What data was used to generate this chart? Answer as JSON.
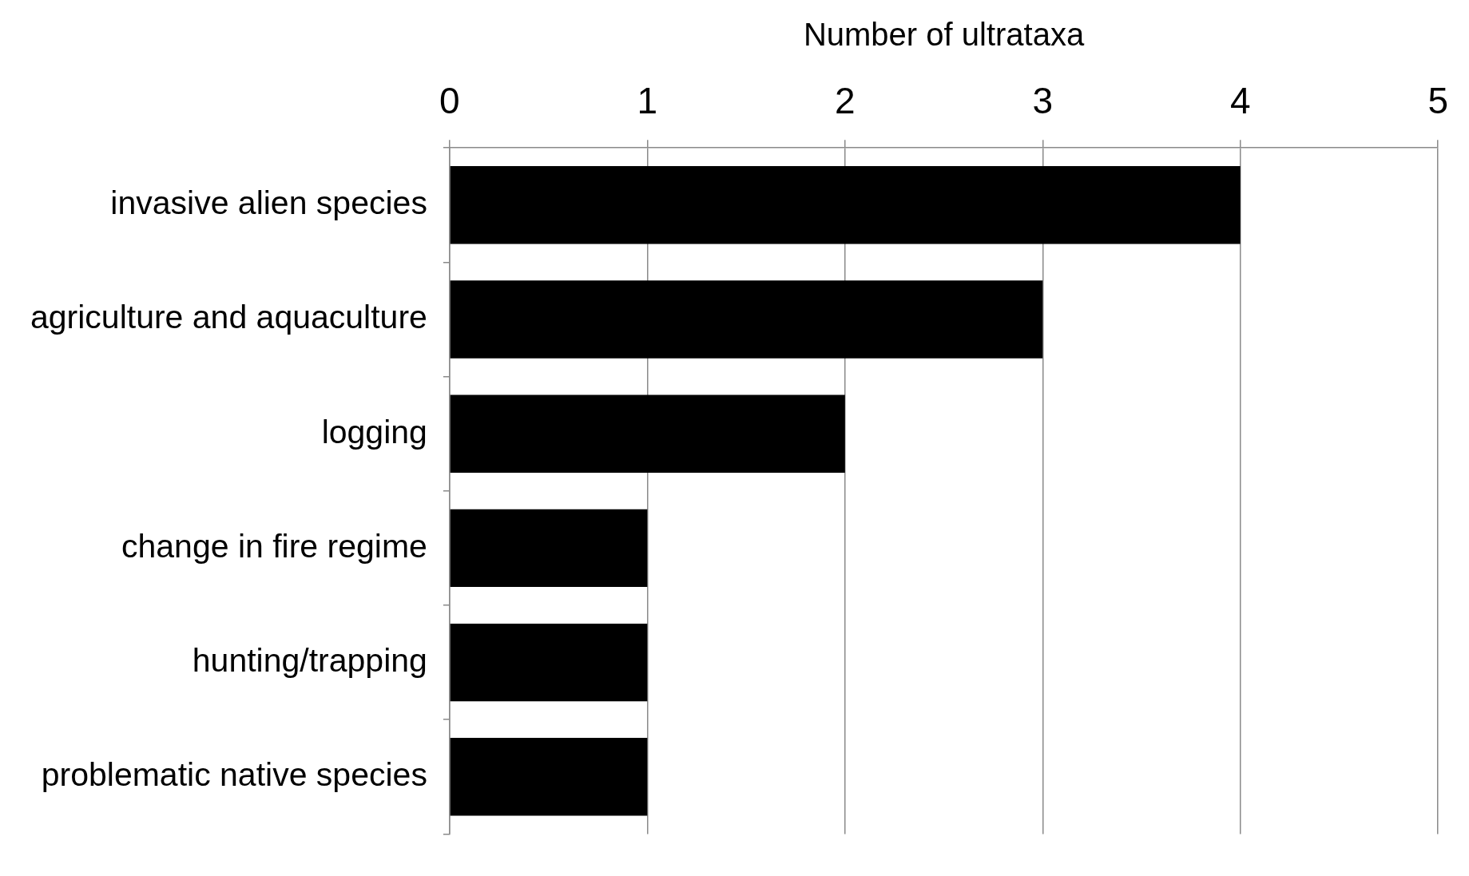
{
  "chart_data": {
    "type": "bar",
    "orientation": "horizontal",
    "xlabel": "Number of ultrataxa",
    "categories": [
      "invasive alien species",
      "agriculture and aquaculture",
      "logging",
      "change in fire regime",
      "hunting/trapping",
      "problematic native species"
    ],
    "values": [
      4,
      3,
      2,
      1,
      1,
      1
    ],
    "color": "#000000",
    "xlim": [
      0,
      5
    ],
    "xticks": [
      0,
      1,
      2,
      3,
      4,
      5
    ],
    "grid": "x",
    "legend": false
  }
}
